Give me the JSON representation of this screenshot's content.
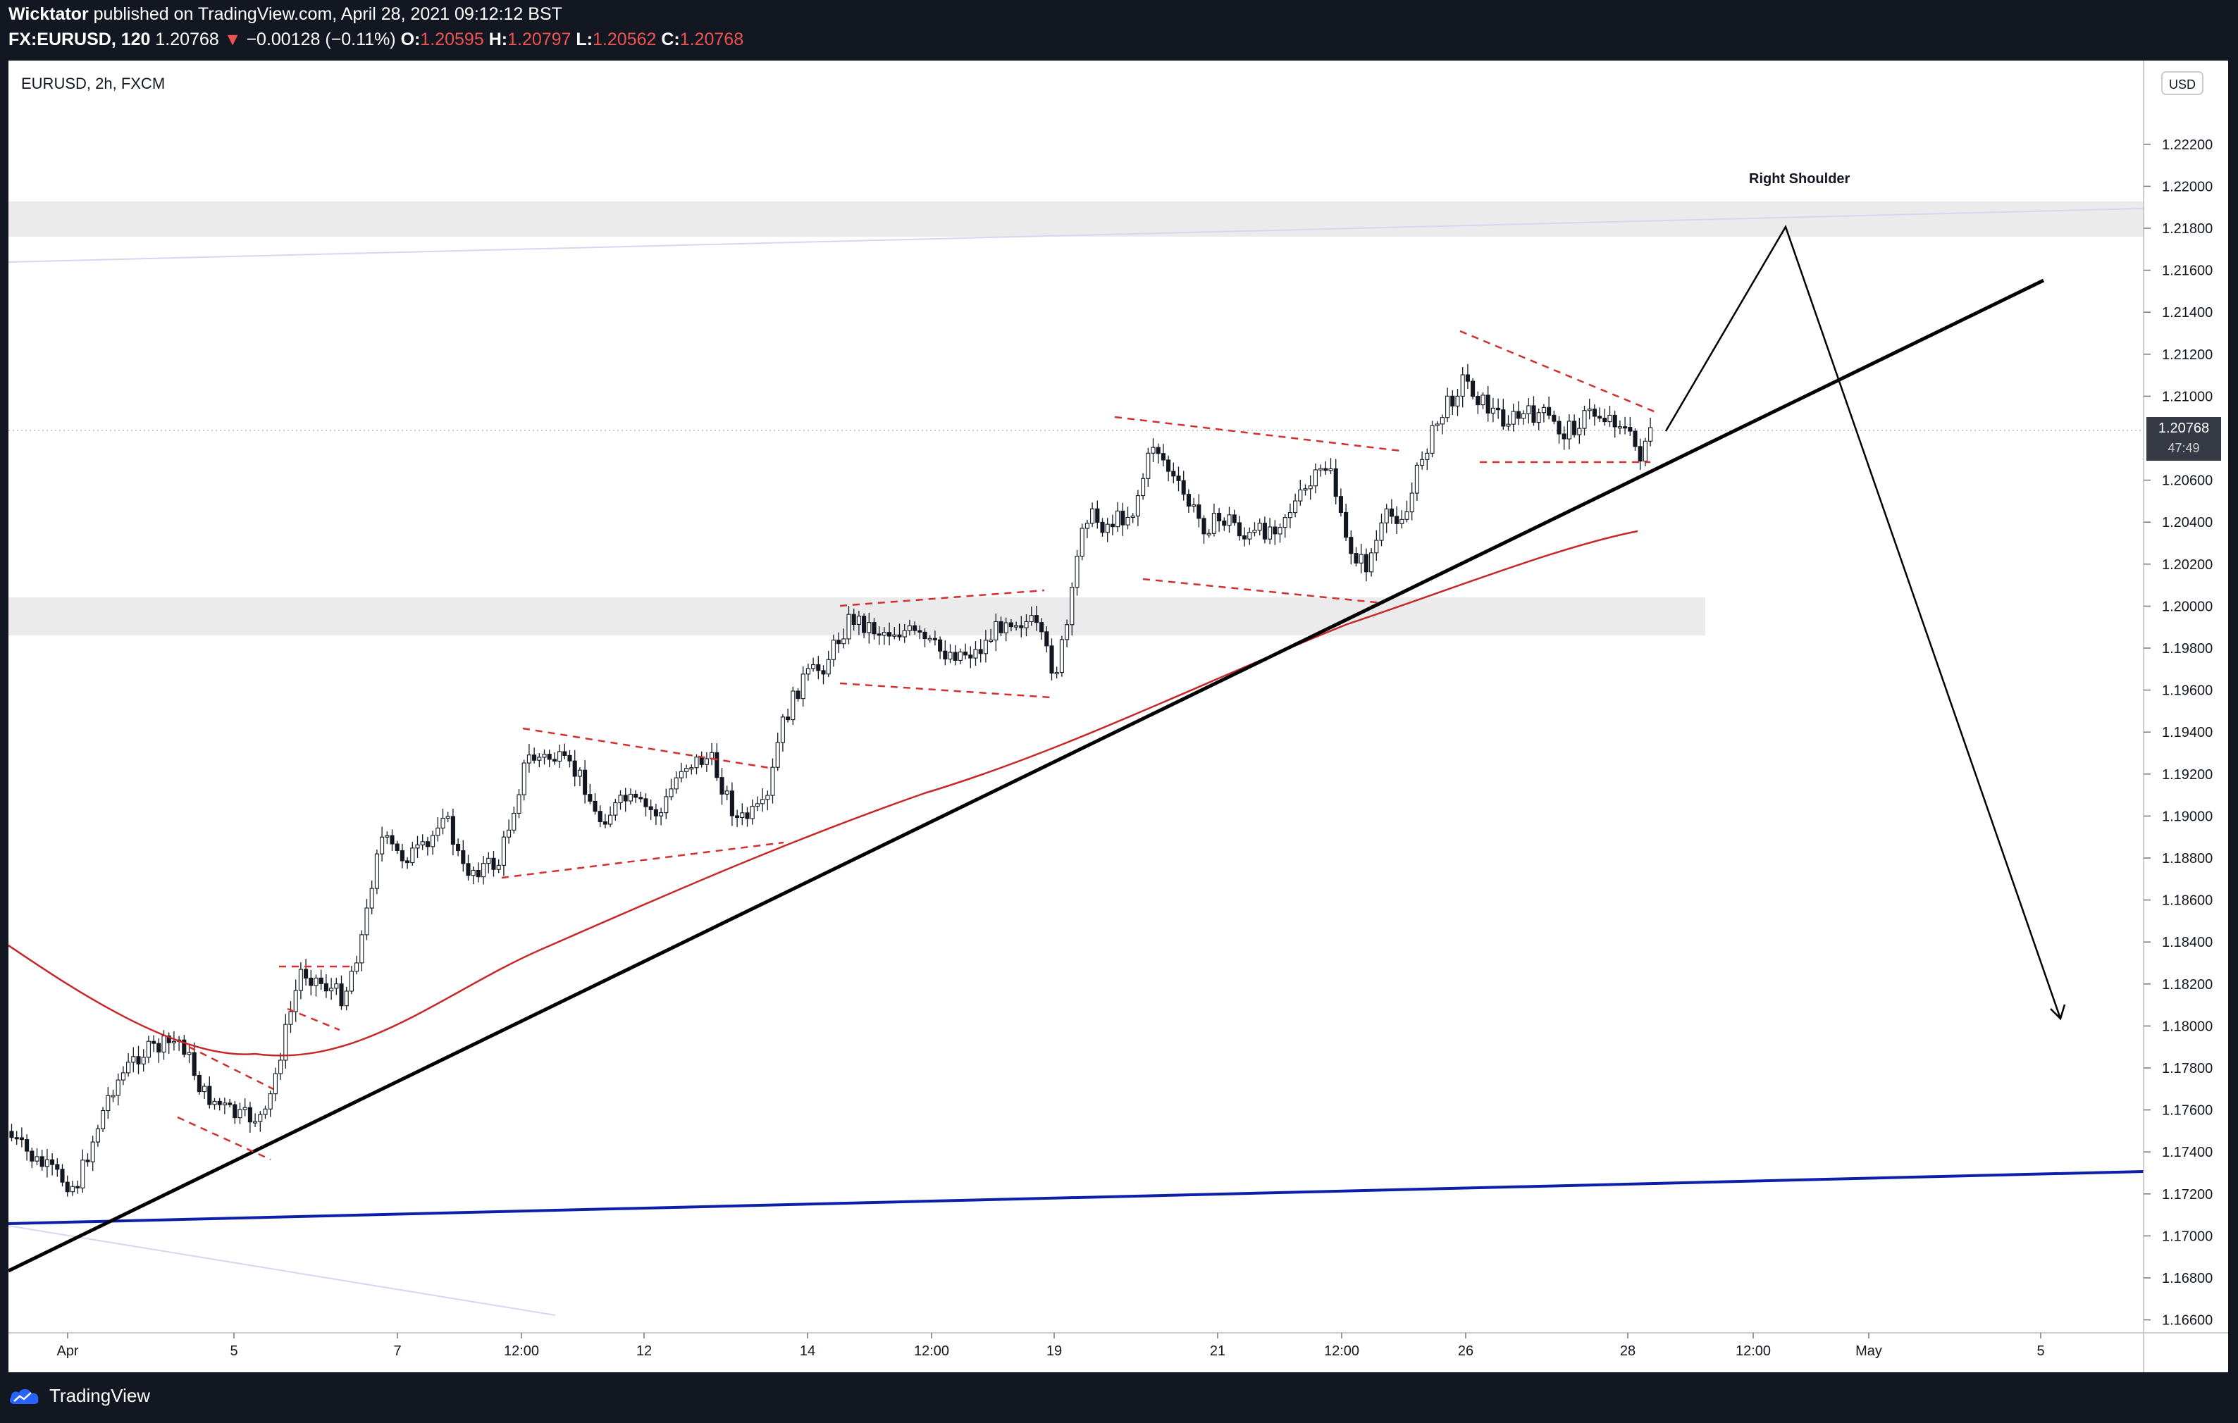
{
  "header": {
    "author": "Wicktator",
    "published_text": "published on TradingView.com, April 28, 2021 09:12:12 BST",
    "symbol": "FX:EURUSD, 120",
    "last_price": "1.20768",
    "change_arrow": "▼",
    "change": "−0.00128 (−0.11%)",
    "ohlc": {
      "o_label": "O:",
      "o_value": "1.20595",
      "h_label": "H:",
      "h_value": "1.20797",
      "l_label": "L:",
      "l_value": "1.20562",
      "c_label": "C:",
      "c_value": "1.20768"
    }
  },
  "chart": {
    "legend": "EURUSD, 2h, FXCM",
    "currency_badge": "USD",
    "price_label": "1.20768",
    "countdown": "47:49",
    "annotation": "Right Shoulder",
    "y_ticks": [
      "1.22200",
      "1.22000",
      "1.21800",
      "1.21600",
      "1.21400",
      "1.21200",
      "1.21000",
      "1.20600",
      "1.20400",
      "1.20200",
      "1.20000",
      "1.19800",
      "1.19600",
      "1.19400",
      "1.19200",
      "1.19000",
      "1.18800",
      "1.18600",
      "1.18400",
      "1.18200",
      "1.18000",
      "1.17800",
      "1.17600",
      "1.17400",
      "1.17200",
      "1.17000",
      "1.16800",
      "1.16600"
    ],
    "x_ticks": [
      "Apr",
      "5",
      "7",
      "12:00",
      "12",
      "14",
      "12:00",
      "19",
      "21",
      "12:00",
      "26",
      "28",
      "12:00",
      "May",
      "5"
    ],
    "colors": {
      "up_candle": "#ffffff",
      "down_candle": "#131722",
      "ma_line": "#c62828",
      "trendline": "#000000",
      "blue_line": "#0d1ea8",
      "pattern_dash": "#d32f2f",
      "zone": "#ebebeb"
    }
  },
  "footer": {
    "brand": "TradingView",
    "logo_icon": "tradingview-cloud-logo"
  }
}
